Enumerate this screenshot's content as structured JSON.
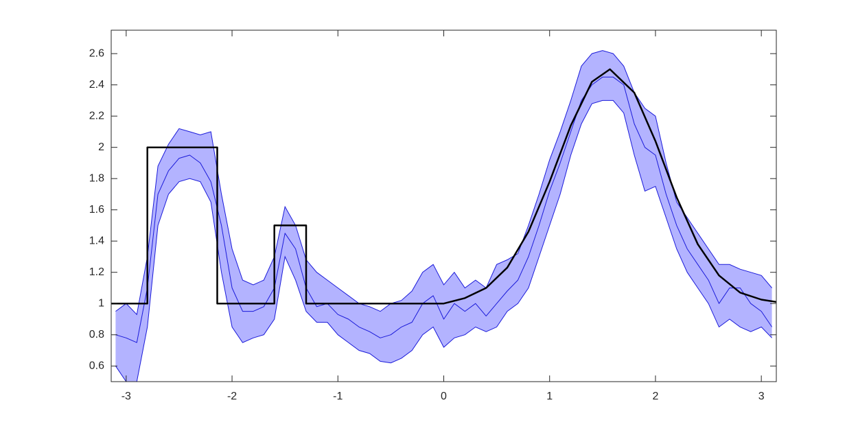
{
  "chart_data": {
    "type": "line",
    "xlim": [
      -3.1416,
      3.1416
    ],
    "ylim": [
      0.5,
      2.75
    ],
    "xticks": [
      -3,
      -2,
      -1,
      0,
      1,
      2,
      3
    ],
    "yticks": [
      0.6,
      0.8,
      1,
      1.2,
      1.4,
      1.6,
      1.8,
      2,
      2.2,
      2.4,
      2.6
    ],
    "x": [
      -3.1,
      -3.0,
      -2.9,
      -2.8,
      -2.7,
      -2.6,
      -2.5,
      -2.4,
      -2.3,
      -2.2,
      -2.1,
      -2.0,
      -1.9,
      -1.8,
      -1.7,
      -1.6,
      -1.5,
      -1.4,
      -1.3,
      -1.2,
      -1.1,
      -1.0,
      -0.9,
      -0.8,
      -0.7,
      -0.6,
      -0.5,
      -0.4,
      -0.3,
      -0.2,
      -0.1,
      0.0,
      0.1,
      0.2,
      0.3,
      0.4,
      0.5,
      0.6,
      0.7,
      0.8,
      0.9,
      1.0,
      1.1,
      1.2,
      1.3,
      1.4,
      1.5,
      1.6,
      1.7,
      1.8,
      1.9,
      2.0,
      2.1,
      2.2,
      2.3,
      2.4,
      2.5,
      2.6,
      2.7,
      2.8,
      2.9,
      3.0,
      3.1
    ],
    "band": {
      "color": "#b3b3ff",
      "edge_color": "#1a1ad9",
      "lower": [
        0.6,
        0.5,
        0.5,
        0.85,
        1.5,
        1.7,
        1.78,
        1.8,
        1.78,
        1.65,
        1.2,
        0.85,
        0.75,
        0.78,
        0.8,
        0.9,
        1.3,
        1.15,
        0.95,
        0.88,
        0.88,
        0.8,
        0.75,
        0.7,
        0.68,
        0.63,
        0.62,
        0.65,
        0.7,
        0.8,
        0.85,
        0.72,
        0.78,
        0.8,
        0.85,
        0.82,
        0.85,
        0.95,
        1.0,
        1.1,
        1.3,
        1.5,
        1.7,
        1.95,
        2.15,
        2.28,
        2.3,
        2.3,
        2.22,
        1.95,
        1.72,
        1.75,
        1.55,
        1.35,
        1.2,
        1.1,
        1.0,
        0.85,
        0.9,
        0.85,
        0.82,
        0.85,
        0.78
      ],
      "upper": [
        0.95,
        1.0,
        0.93,
        1.3,
        1.88,
        2.02,
        2.12,
        2.1,
        2.08,
        2.1,
        1.7,
        1.35,
        1.15,
        1.12,
        1.15,
        1.3,
        1.62,
        1.5,
        1.28,
        1.2,
        1.15,
        1.1,
        1.05,
        1.0,
        0.98,
        0.95,
        1.0,
        1.02,
        1.08,
        1.2,
        1.25,
        1.12,
        1.2,
        1.1,
        1.15,
        1.1,
        1.25,
        1.28,
        1.32,
        1.5,
        1.7,
        1.92,
        2.1,
        2.3,
        2.52,
        2.6,
        2.62,
        2.6,
        2.52,
        2.35,
        2.25,
        2.2,
        1.9,
        1.65,
        1.55,
        1.45,
        1.35,
        1.25,
        1.25,
        1.22,
        1.2,
        1.18,
        1.1
      ]
    },
    "series": [
      {
        "color": "#1a1ad9",
        "width": 1,
        "values": [
          0.8,
          0.78,
          0.75,
          1.1,
          1.7,
          1.85,
          1.93,
          1.95,
          1.9,
          1.78,
          1.5,
          1.1,
          0.95,
          0.95,
          0.98,
          1.1,
          1.45,
          1.35,
          1.1,
          0.98,
          1.0,
          0.93,
          0.9,
          0.85,
          0.82,
          0.78,
          0.8,
          0.85,
          0.88,
          1.0,
          1.05,
          0.9,
          1.0,
          0.95,
          1.0,
          0.92,
          1.0,
          1.08,
          1.15,
          1.3,
          1.5,
          1.72,
          1.9,
          2.1,
          2.3,
          2.4,
          2.45,
          2.45,
          2.4,
          2.15,
          2.0,
          1.95,
          1.7,
          1.5,
          1.35,
          1.25,
          1.15,
          1.0,
          1.1,
          1.1,
          1.0,
          0.95,
          0.85
        ]
      },
      {
        "color": "#000000",
        "width": 2.5,
        "x": [
          -3.1416,
          -2.8,
          -2.8,
          -2.14,
          -2.14,
          -1.6,
          -1.6,
          -1.3,
          -1.3,
          0,
          0.2,
          0.4,
          0.6,
          0.8,
          1.0,
          1.2,
          1.4,
          1.57,
          1.8,
          2.0,
          2.2,
          2.4,
          2.6,
          2.8,
          3.0,
          3.1416
        ],
        "values": [
          1,
          1,
          2,
          2,
          1,
          1,
          1.5,
          1.5,
          1,
          1,
          1.035,
          1.1,
          1.23,
          1.46,
          1.78,
          2.14,
          2.42,
          2.5,
          2.35,
          2.04,
          1.68,
          1.38,
          1.18,
          1.07,
          1.025,
          1.01
        ]
      }
    ]
  }
}
